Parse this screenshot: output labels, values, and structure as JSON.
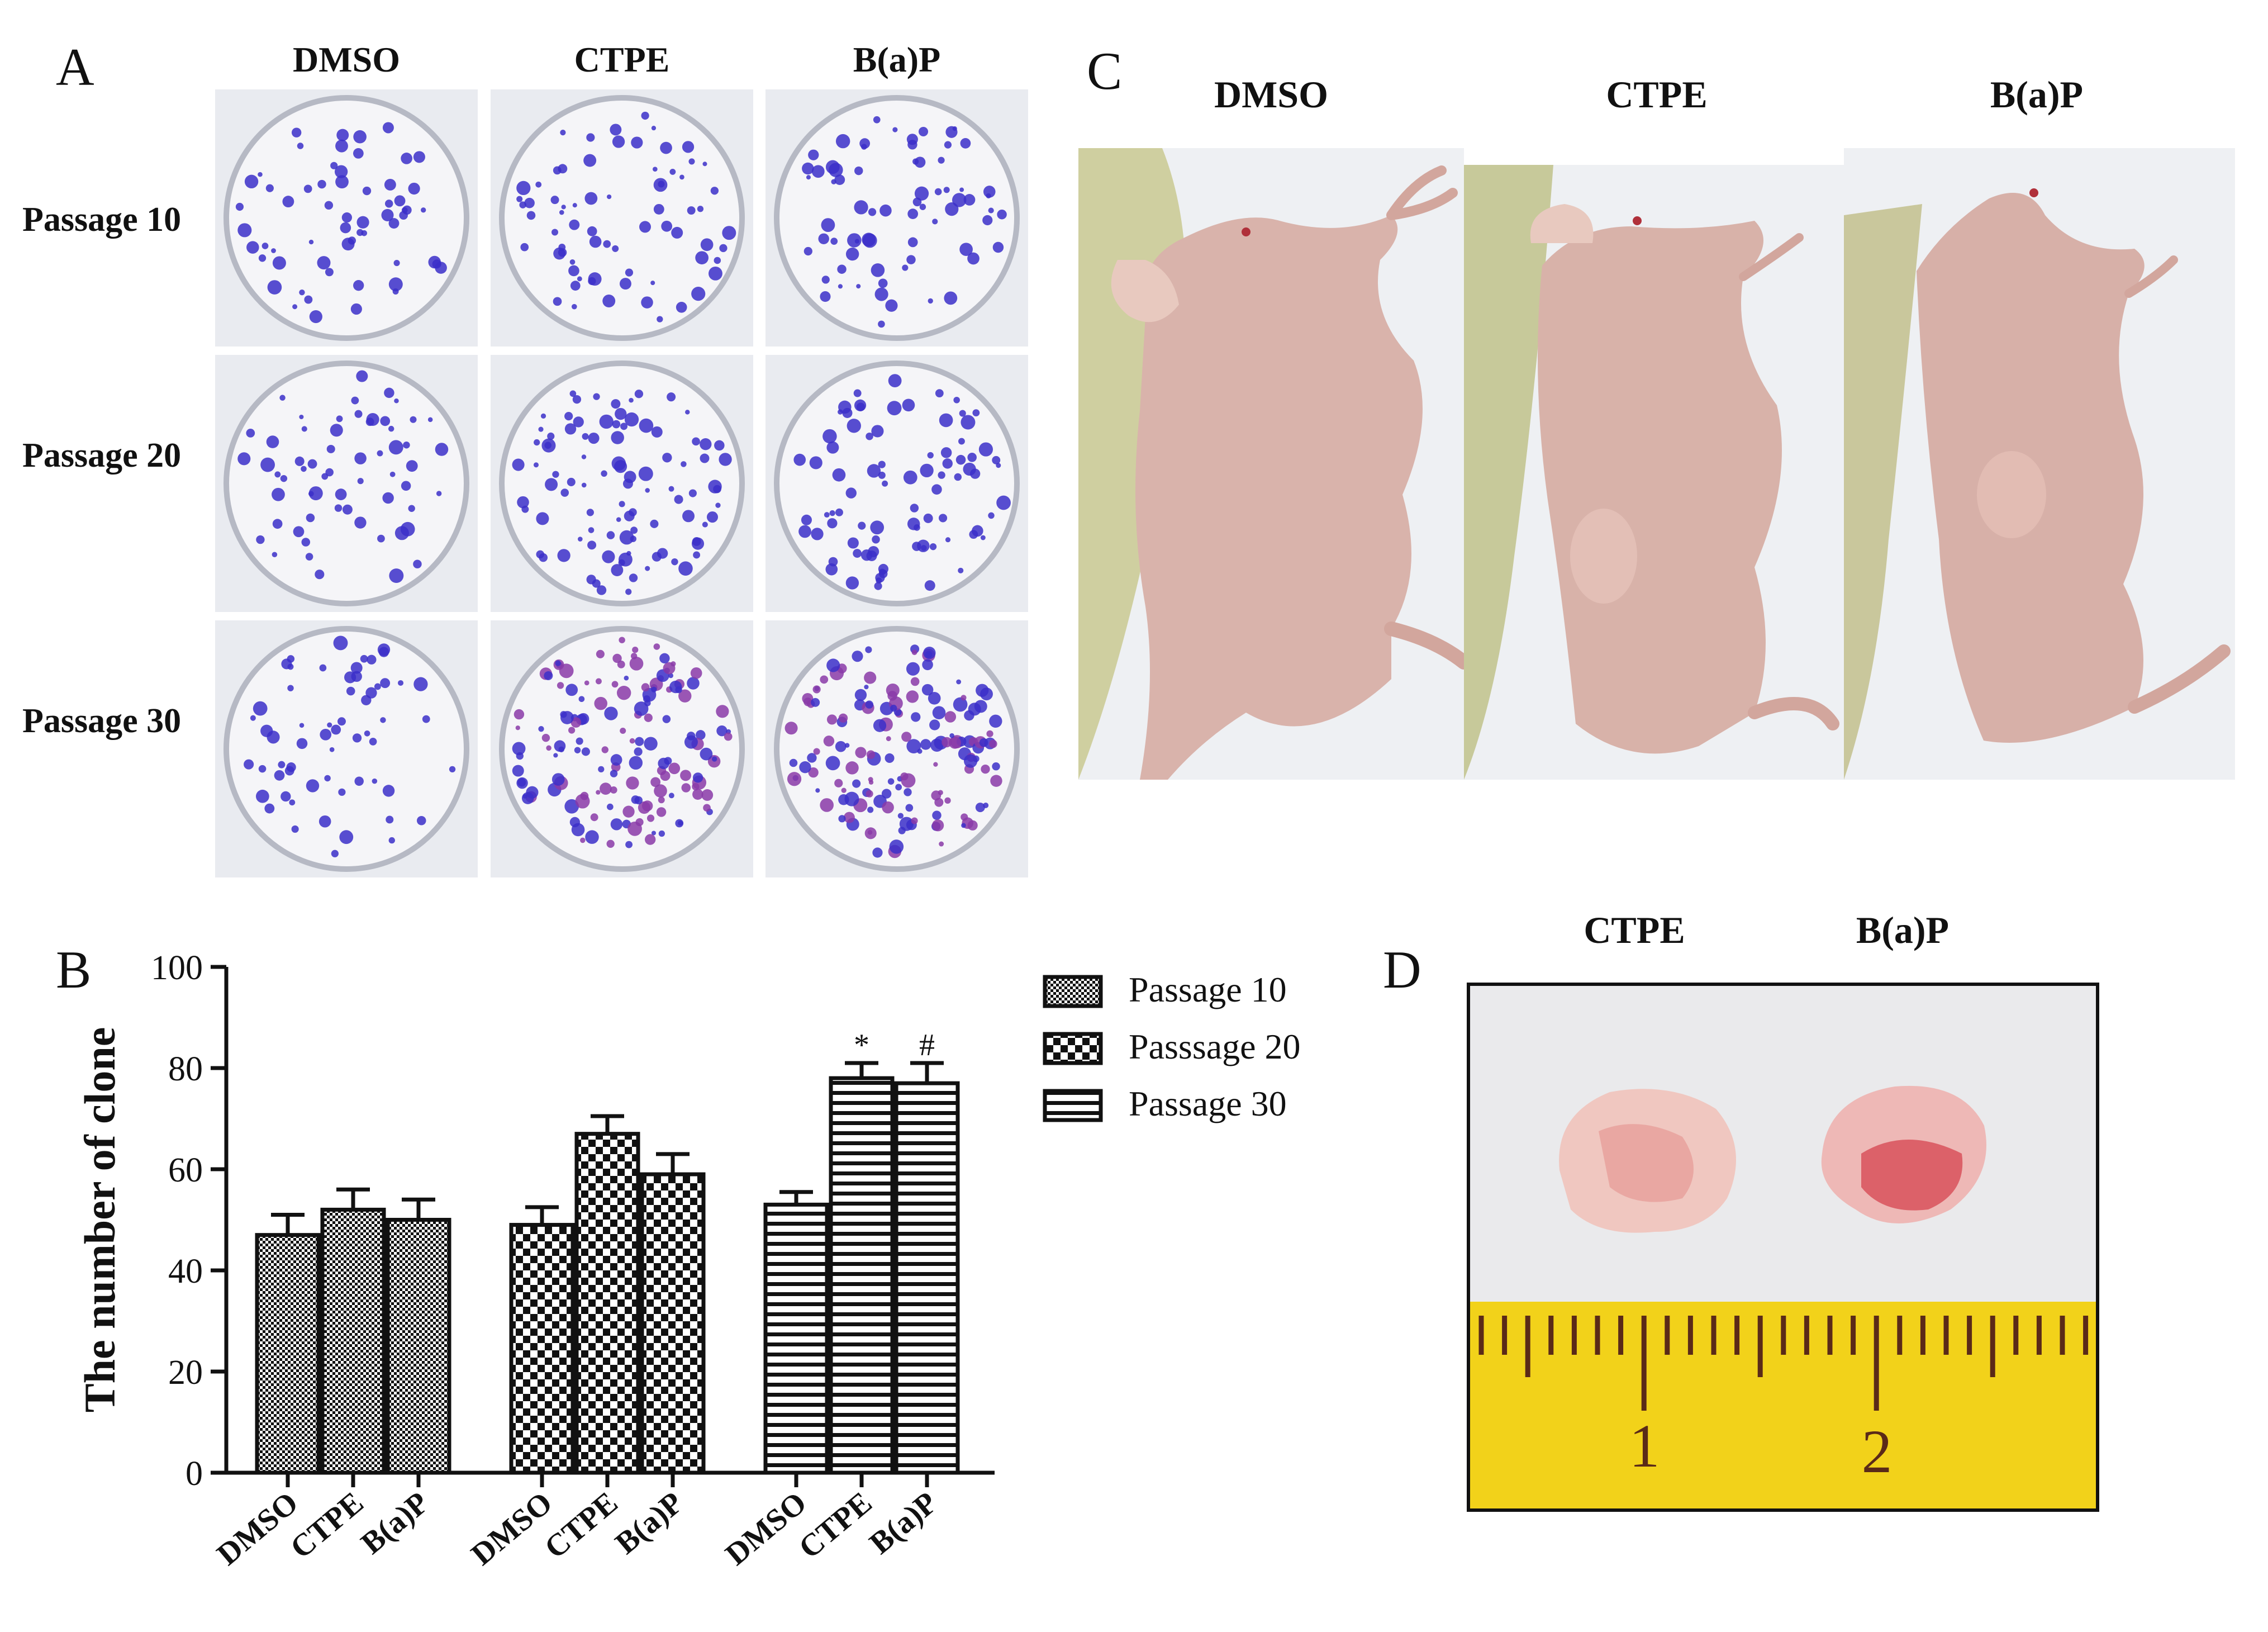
{
  "panel_labels": {
    "a": "A",
    "b": "B",
    "c": "C",
    "d": "D"
  },
  "panel_a": {
    "columns": [
      "DMSO",
      "CTPE",
      "B(a)P"
    ],
    "rows": [
      "Passage 10",
      "Passage 20",
      "Passage 30"
    ],
    "image_desc": "crystal-violet-stained-colony-dishes"
  },
  "panel_c": {
    "columns": [
      "DMSO",
      "CTPE",
      "B(a)P"
    ],
    "image_desc": "nude-mice-with-subcutaneous-tumors"
  },
  "panel_d": {
    "columns": [
      "CTPE",
      "B(a)P"
    ],
    "ruler_labels": [
      "1",
      "2"
    ],
    "image_desc": "excised-tumors-next-to-ruler"
  },
  "colors": {
    "axis": "#111111",
    "dish_purple": "#3b2fc9",
    "dish_magenta": "#8a3aa8",
    "ruler_yellow": "#f2d21a",
    "mouse_skin": "#d9b3ab",
    "tumor_red": "#d6444f"
  },
  "chart_data": {
    "type": "bar",
    "ylabel": "The number of clone",
    "xlabel": "",
    "ylim": [
      0,
      100
    ],
    "yticks": [
      0,
      20,
      40,
      60,
      80,
      100
    ],
    "categories": [
      "DMSO",
      "CTPE",
      "B(a)P"
    ],
    "series": [
      {
        "name": "Passage 10",
        "values": [
          47,
          52,
          50
        ],
        "errors": [
          4,
          4,
          4
        ],
        "pattern": "fine-check",
        "annotations": [
          "",
          "",
          ""
        ]
      },
      {
        "name": "Passsage 20",
        "values": [
          49,
          67,
          59
        ],
        "errors": [
          3.5,
          3.5,
          4
        ],
        "pattern": "coarse-check",
        "annotations": [
          "",
          "",
          ""
        ]
      },
      {
        "name": "Passage 30",
        "values": [
          53,
          78,
          77
        ],
        "errors": [
          2.5,
          3,
          4
        ],
        "pattern": "horizontal-lines",
        "annotations": [
          "",
          "*",
          "#"
        ]
      }
    ],
    "legend_position": "right",
    "grid": false
  }
}
